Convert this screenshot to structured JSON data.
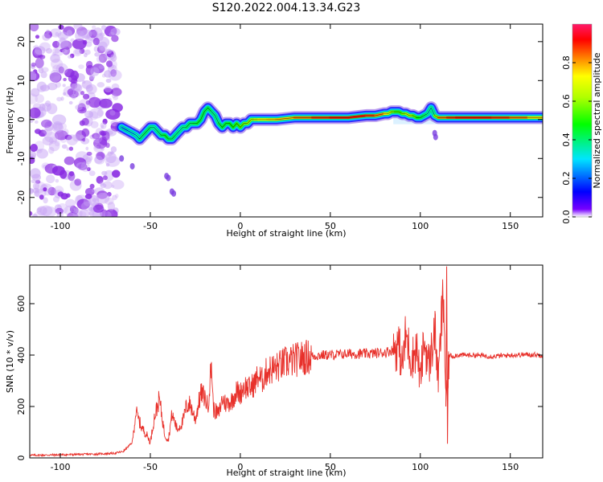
{
  "figure": {
    "title": "S120.2022.004.13.34.G23"
  },
  "chart_data": [
    {
      "type": "heatmap",
      "xlabel": "Height of straight line (km)",
      "ylabel": "Frequency (Hz)",
      "xlim": [
        -117,
        168
      ],
      "ylim": [
        -25,
        24.5
      ],
      "xticks": [
        -100,
        -50,
        0,
        50,
        100,
        150
      ],
      "yticks": [
        -20,
        -10,
        0,
        10,
        20
      ],
      "noise_region_x": [
        -117,
        -68
      ],
      "ridge": {
        "x": [
          -66,
          -62,
          -58,
          -56,
          -54,
          -52,
          -50,
          -48,
          -46,
          -44,
          -42,
          -40,
          -38,
          -36,
          -34,
          -32,
          -30,
          -28,
          -26,
          -24,
          -22,
          -20,
          -18,
          -16,
          -14,
          -12,
          -10,
          -8,
          -6,
          -4,
          -2,
          0,
          2,
          4,
          6,
          8,
          10,
          15,
          20,
          30,
          40,
          50,
          60,
          70,
          75,
          80,
          82,
          84,
          86,
          88,
          90,
          92,
          94,
          96,
          98,
          100,
          102,
          104,
          106,
          108,
          110,
          115,
          120,
          130,
          140,
          150,
          160,
          168
        ],
        "y": [
          -2,
          -3,
          -4,
          -5,
          -4,
          -3,
          -2,
          -2,
          -3,
          -4,
          -4,
          -5,
          -5,
          -4,
          -3,
          -2,
          -2,
          -1,
          -1,
          -1,
          0,
          2,
          3,
          2,
          1,
          -1,
          -2,
          -1,
          -1,
          -2,
          -1,
          -2,
          -1,
          -1,
          0,
          0,
          0,
          0,
          0,
          0.5,
          0.5,
          0.5,
          0.5,
          1,
          1,
          1.5,
          1.5,
          2,
          2,
          2,
          1.5,
          1.5,
          1,
          1,
          0.5,
          0.5,
          1,
          1.5,
          3,
          1,
          0.5,
          0.5,
          0.5,
          0.5,
          0.5,
          0.5,
          0.5,
          0.5
        ],
        "amplitude": [
          0.25,
          0.25,
          0.3,
          0.35,
          0.4,
          0.4,
          0.4,
          0.35,
          0.35,
          0.4,
          0.45,
          0.45,
          0.4,
          0.4,
          0.35,
          0.35,
          0.4,
          0.4,
          0.4,
          0.45,
          0.45,
          0.4,
          0.45,
          0.4,
          0.35,
          0.4,
          0.45,
          0.45,
          0.45,
          0.5,
          0.5,
          0.55,
          0.55,
          0.6,
          0.6,
          0.65,
          0.7,
          0.75,
          0.75,
          0.8,
          0.85,
          0.9,
          0.9,
          0.9,
          0.85,
          0.8,
          0.7,
          0.6,
          0.55,
          0.5,
          0.55,
          0.6,
          0.65,
          0.6,
          0.5,
          0.45,
          0.4,
          0.4,
          0.3,
          0.4,
          0.8,
          0.85,
          0.9,
          0.9,
          0.9,
          0.85,
          0.8,
          0.7
        ]
      },
      "colorbar": {
        "label": "Normalized spectral amplitude",
        "range": [
          0,
          1
        ],
        "ticks": [
          0.0,
          0.2,
          0.4,
          0.6,
          0.8
        ],
        "tick_labels": [
          "0.0",
          "0.2",
          "0.4",
          "0.6",
          "0.8"
        ]
      }
    },
    {
      "type": "line",
      "xlabel": "Height of straight line (km)",
      "ylabel": "SNR (10 * v/v)",
      "xlim": [
        -117,
        168
      ],
      "ylim": [
        0,
        750
      ],
      "xticks": [
        -100,
        -50,
        0,
        50,
        100,
        150
      ],
      "yticks": [
        0,
        200,
        400,
        600
      ],
      "series": [
        {
          "color": "#e8312b",
          "x": [
            -117,
            -100,
            -80,
            -70,
            -65,
            -60,
            -58,
            -55,
            -52,
            -50,
            -48,
            -45,
            -42,
            -40,
            -38,
            -35,
            -32,
            -30,
            -28,
            -25,
            -22,
            -20,
            -18,
            -16,
            -15,
            -12,
            -10,
            -8,
            -5,
            -2,
            0,
            2,
            5,
            8,
            10,
            12,
            15,
            20,
            25,
            30,
            35,
            40,
            45,
            50,
            60,
            70,
            80,
            85,
            88,
            90,
            92,
            95,
            98,
            100,
            102,
            105,
            108,
            110,
            112,
            113,
            114,
            115,
            116,
            118,
            120,
            130,
            140,
            150,
            160,
            168
          ],
          "y": [
            10,
            12,
            15,
            18,
            25,
            60,
            180,
            120,
            90,
            60,
            150,
            230,
            90,
            70,
            170,
            110,
            140,
            200,
            210,
            150,
            250,
            240,
            200,
            370,
            190,
            170,
            230,
            210,
            220,
            260,
            250,
            280,
            270,
            290,
            320,
            300,
            340,
            350,
            370,
            380,
            390,
            395,
            400,
            400,
            405,
            405,
            410,
            420,
            440,
            360,
            480,
            380,
            430,
            300,
            450,
            360,
            500,
            300,
            560,
            620,
            280,
            210,
            400,
            395,
            400,
            400,
            395,
            400,
            402,
            400
          ]
        }
      ]
    }
  ]
}
